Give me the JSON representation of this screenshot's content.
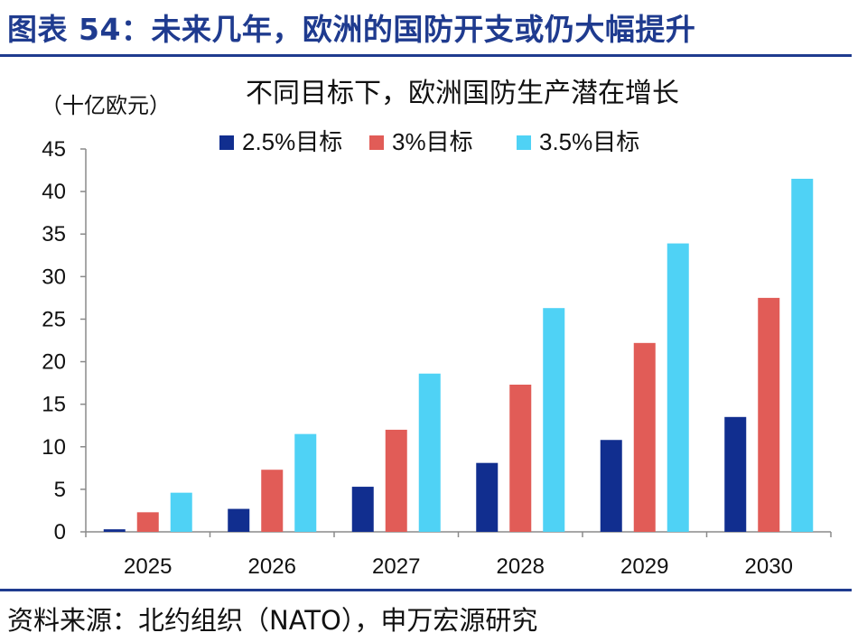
{
  "header": {
    "title": "图表 54：未来几年，欧洲的国防开支或仍大幅提升",
    "source": "资料来源：北约组织（NATO），申万宏源研究"
  },
  "colors": {
    "accent": "#1f3b8f",
    "series": [
      "#112e8f",
      "#e15c57",
      "#4fd2f5"
    ]
  },
  "chart_data": {
    "type": "bar",
    "title": "不同目标下，欧洲国防生产潜在增长",
    "ylabel": "（十亿欧元）",
    "xlabel": "",
    "categories": [
      "2025",
      "2026",
      "2027",
      "2028",
      "2029",
      "2030"
    ],
    "series": [
      {
        "name": "2.5%目标",
        "values": [
          0.3,
          2.7,
          5.3,
          8.1,
          10.8,
          13.5
        ]
      },
      {
        "name": "3%目标",
        "values": [
          2.3,
          7.3,
          12.0,
          17.3,
          22.2,
          27.5
        ]
      },
      {
        "name": "3.5%目标",
        "values": [
          4.6,
          11.5,
          18.6,
          26.3,
          33.9,
          41.5
        ]
      }
    ],
    "ylim": [
      0,
      45
    ],
    "yticks": [
      0,
      5,
      10,
      15,
      20,
      25,
      30,
      35,
      40,
      45
    ],
    "grid": false,
    "legend": "top"
  }
}
